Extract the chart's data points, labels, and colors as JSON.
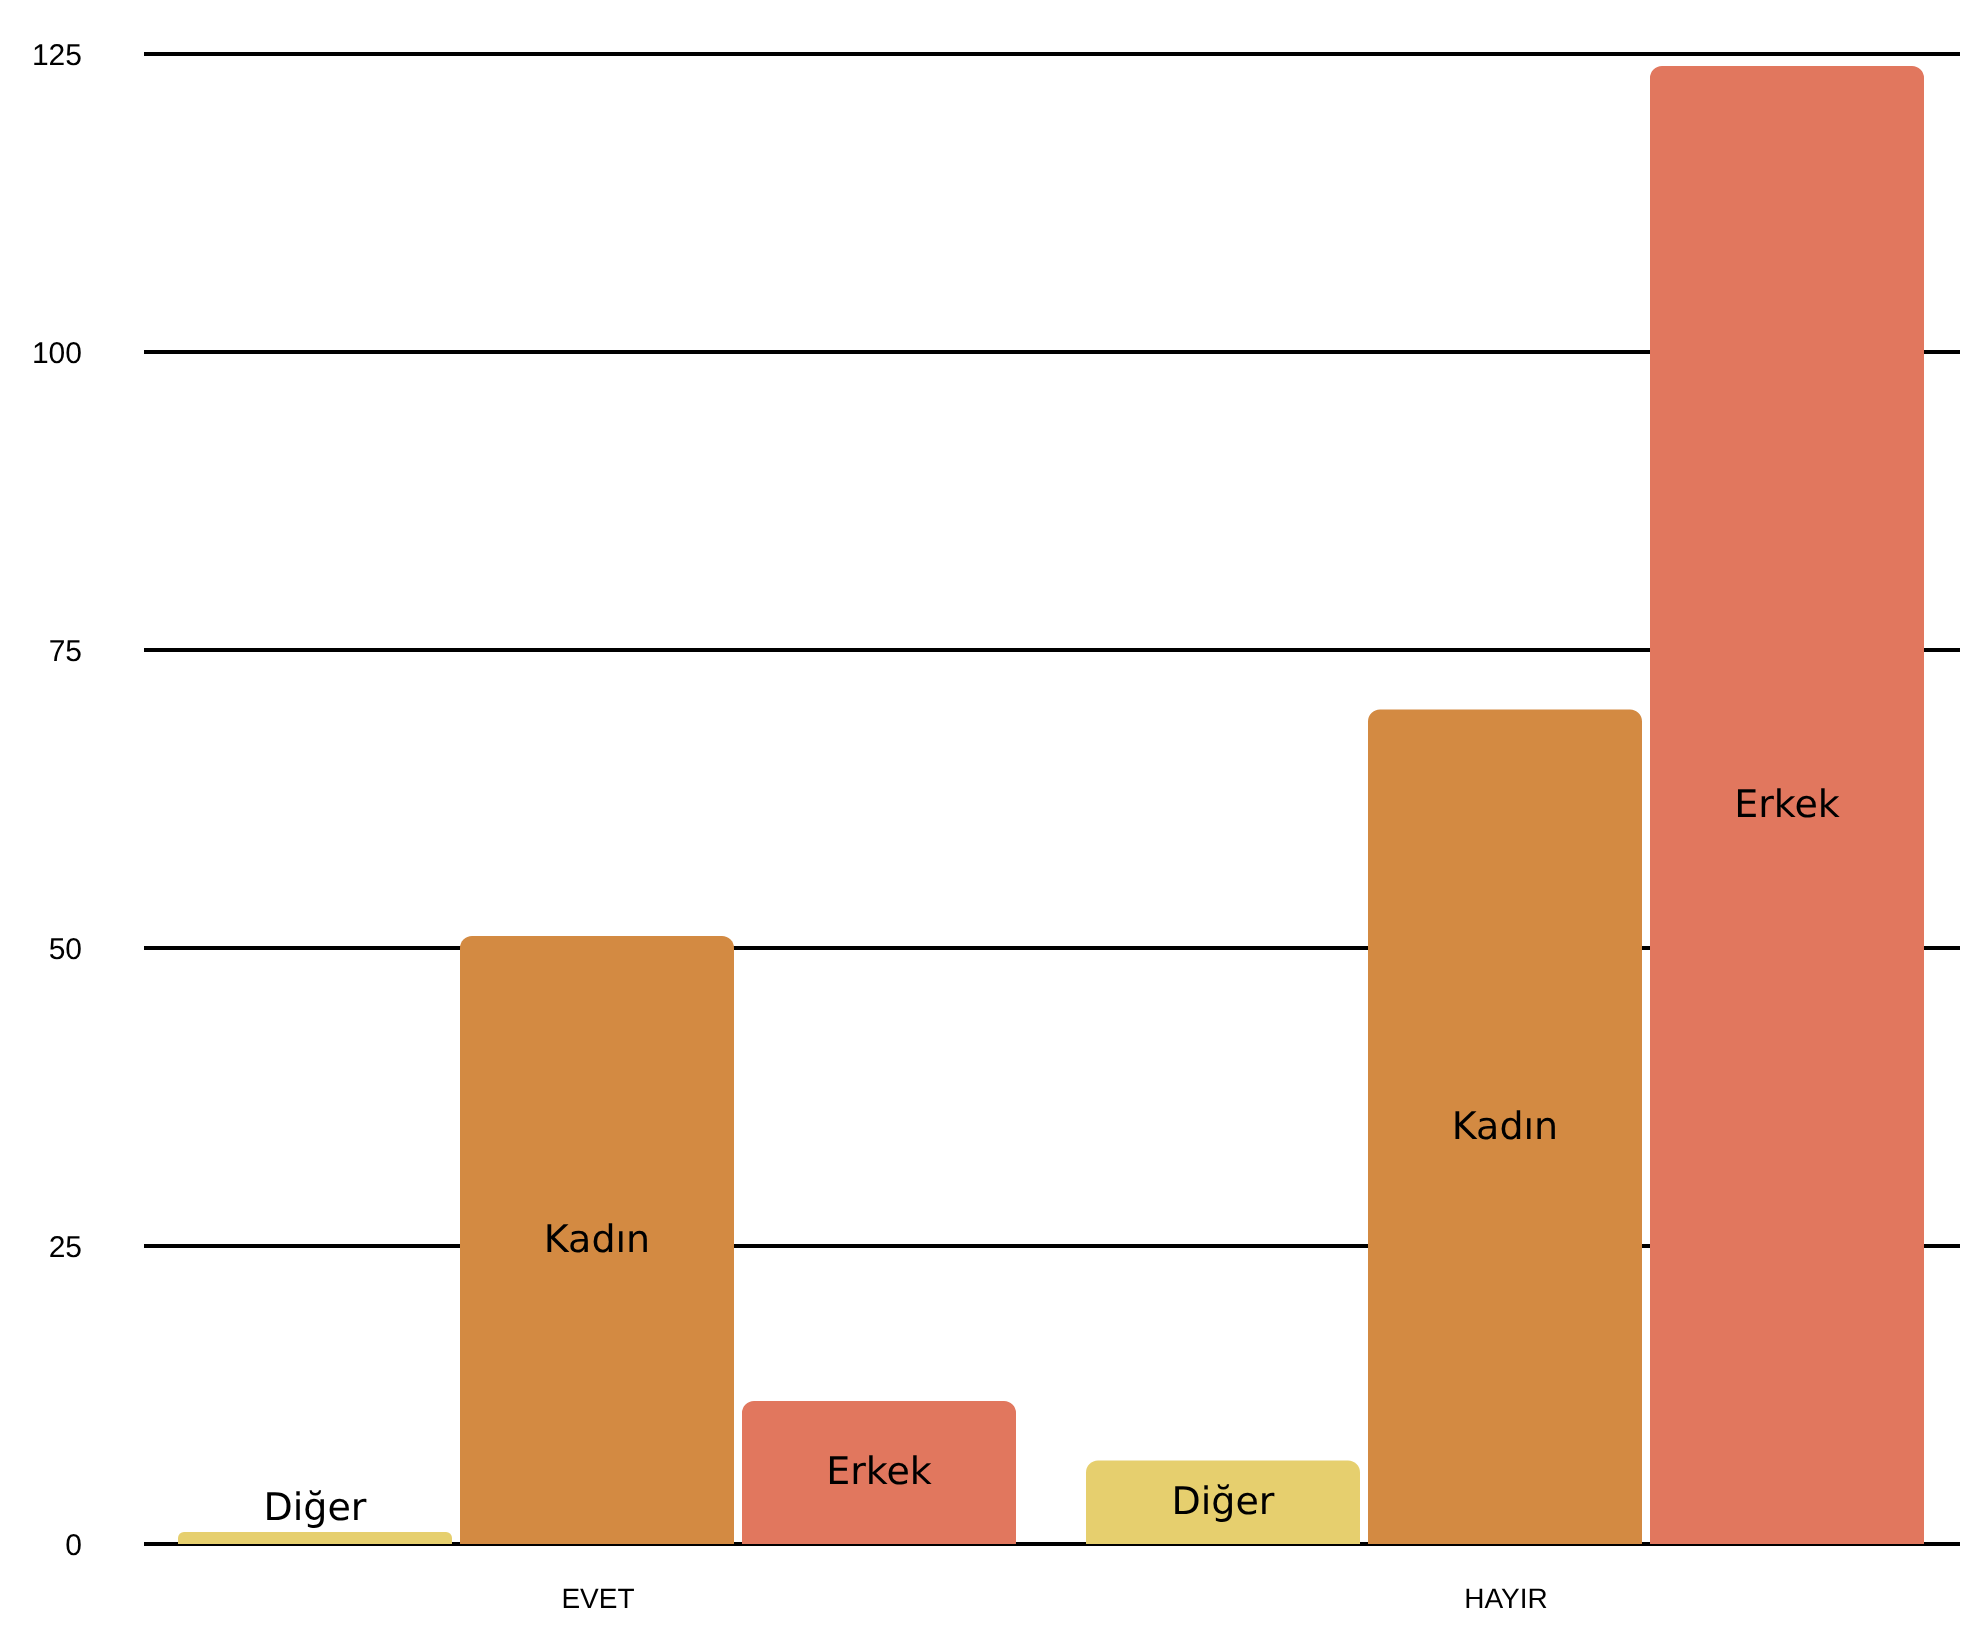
{
  "chart_data": {
    "type": "bar",
    "categories": [
      "EVET",
      "HAYIR"
    ],
    "series": [
      {
        "name": "Diğer",
        "color": "#e6cf6e",
        "values": [
          1,
          7
        ]
      },
      {
        "name": "Kadın",
        "color": "#d38a42",
        "values": [
          51,
          70
        ]
      },
      {
        "name": "Erkek",
        "color": "#e1775e",
        "values": [
          12,
          124
        ]
      }
    ],
    "ylim": [
      0,
      125
    ],
    "yticks": [
      0,
      25,
      50,
      75,
      100,
      125
    ],
    "grid": "y"
  }
}
